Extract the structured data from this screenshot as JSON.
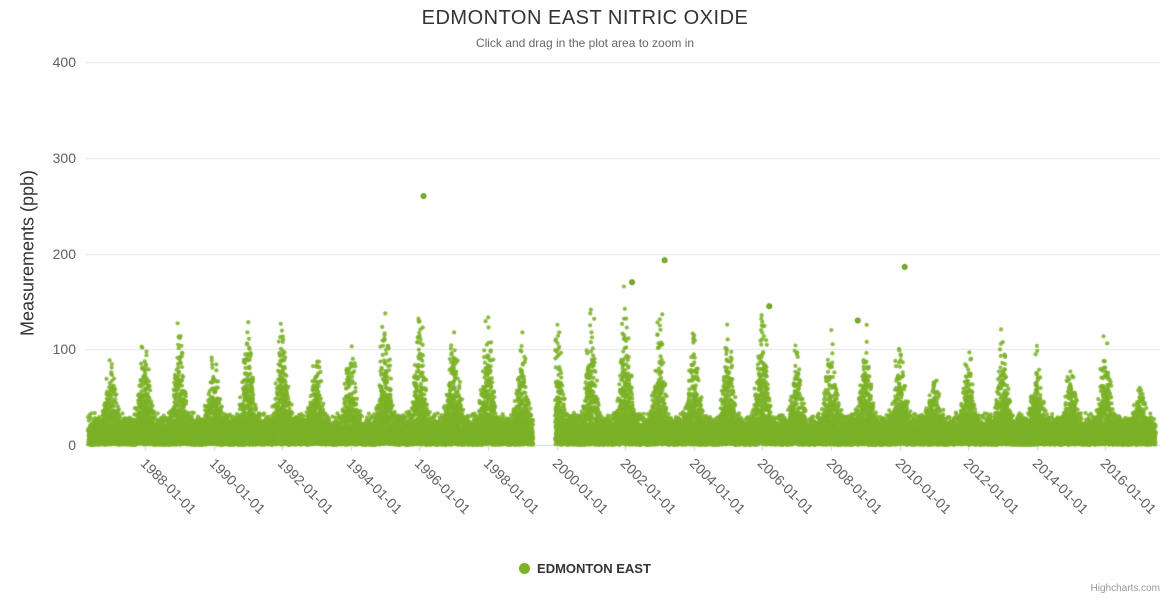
{
  "header": {
    "title": "EDMONTON EAST NITRIC OXIDE",
    "subtitle": "Click and drag in the plot area to zoom in"
  },
  "y_axis": {
    "title": "Measurements (ppb)",
    "ticks": [
      0,
      100,
      200,
      300,
      400
    ]
  },
  "x_axis": {
    "tick_years": [
      1988,
      1990,
      1992,
      1994,
      1996,
      1998,
      2000,
      2002,
      2004,
      2006,
      2008,
      2010,
      2012,
      2014,
      2016
    ],
    "tick_labels": [
      "1988-01-01",
      "1990-01-01",
      "1992-01-01",
      "1994-01-01",
      "1996-01-01",
      "1998-01-01",
      "2000-01-01",
      "2002-01-01",
      "2004-01-01",
      "2006-01-01",
      "2008-01-01",
      "2010-01-01",
      "2012-01-01",
      "2014-01-01",
      "2016-01-01"
    ]
  },
  "legend": {
    "series_label": "EDMONTON EAST"
  },
  "credit_label": "Highcharts.com",
  "chart_data": {
    "type": "scatter",
    "title": "EDMONTON EAST NITRIC OXIDE",
    "subtitle": "Click and drag in the plot area to zoom in",
    "xlabel": "",
    "ylabel": "Measurements (ppb)",
    "ylim": [
      0,
      400
    ],
    "grid": "horizontal-only",
    "legend_position": "bottom-center",
    "x_tick_labels": [
      "1988-01-01",
      "1990-01-01",
      "1992-01-01",
      "1994-01-01",
      "1996-01-01",
      "1998-01-01",
      "2000-01-01",
      "2002-01-01",
      "2004-01-01",
      "2006-01-01",
      "2008-01-01",
      "2010-01-01",
      "2012-01-01",
      "2014-01-01",
      "2016-01-01"
    ],
    "series": [
      {
        "name": "EDMONTON EAST",
        "color": "#7CB228"
      }
    ],
    "x_range_years": [
      1986.36,
      2017.45
    ],
    "data_gap_years": [
      1999.3,
      1999.97
    ],
    "baseline_max_ppb": 32,
    "winter_peaks_ppb": {
      "1987": 90,
      "1988": 115,
      "1989": 120,
      "1990": 95,
      "1991": 128,
      "1992": 132,
      "1993": 100,
      "1994": 108,
      "1995": 135,
      "1996": 140,
      "1997": 122,
      "1998": 132,
      "1999": 110,
      "2000": 135,
      "2001": 140,
      "2002": 150,
      "2003": 135,
      "2004": 115,
      "2005": 122,
      "2006": 148,
      "2007": 105,
      "2008": 110,
      "2009": 115,
      "2010": 105,
      "2011": 75,
      "2012": 95,
      "2013": 118,
      "2014": 95,
      "2015": 80,
      "2016": 112,
      "2017": 60
    },
    "outliers": [
      {
        "date": "1996-02",
        "t": 1996.12,
        "value_ppb": 260
      },
      {
        "date": "2003-02",
        "t": 2003.15,
        "value_ppb": 193
      },
      {
        "date": "2010-02",
        "t": 2010.15,
        "value_ppb": 186
      },
      {
        "date": "2002-03",
        "t": 2002.2,
        "value_ppb": 170
      },
      {
        "date": "2006-03",
        "t": 2006.2,
        "value_ppb": 145
      },
      {
        "date": "2008-10",
        "t": 2008.78,
        "value_ppb": 130
      }
    ],
    "render_hints": {
      "seed": 1234,
      "points_per_day": 3,
      "season_sigma_years": 0.16,
      "point_radius_px": 2.1
    }
  }
}
